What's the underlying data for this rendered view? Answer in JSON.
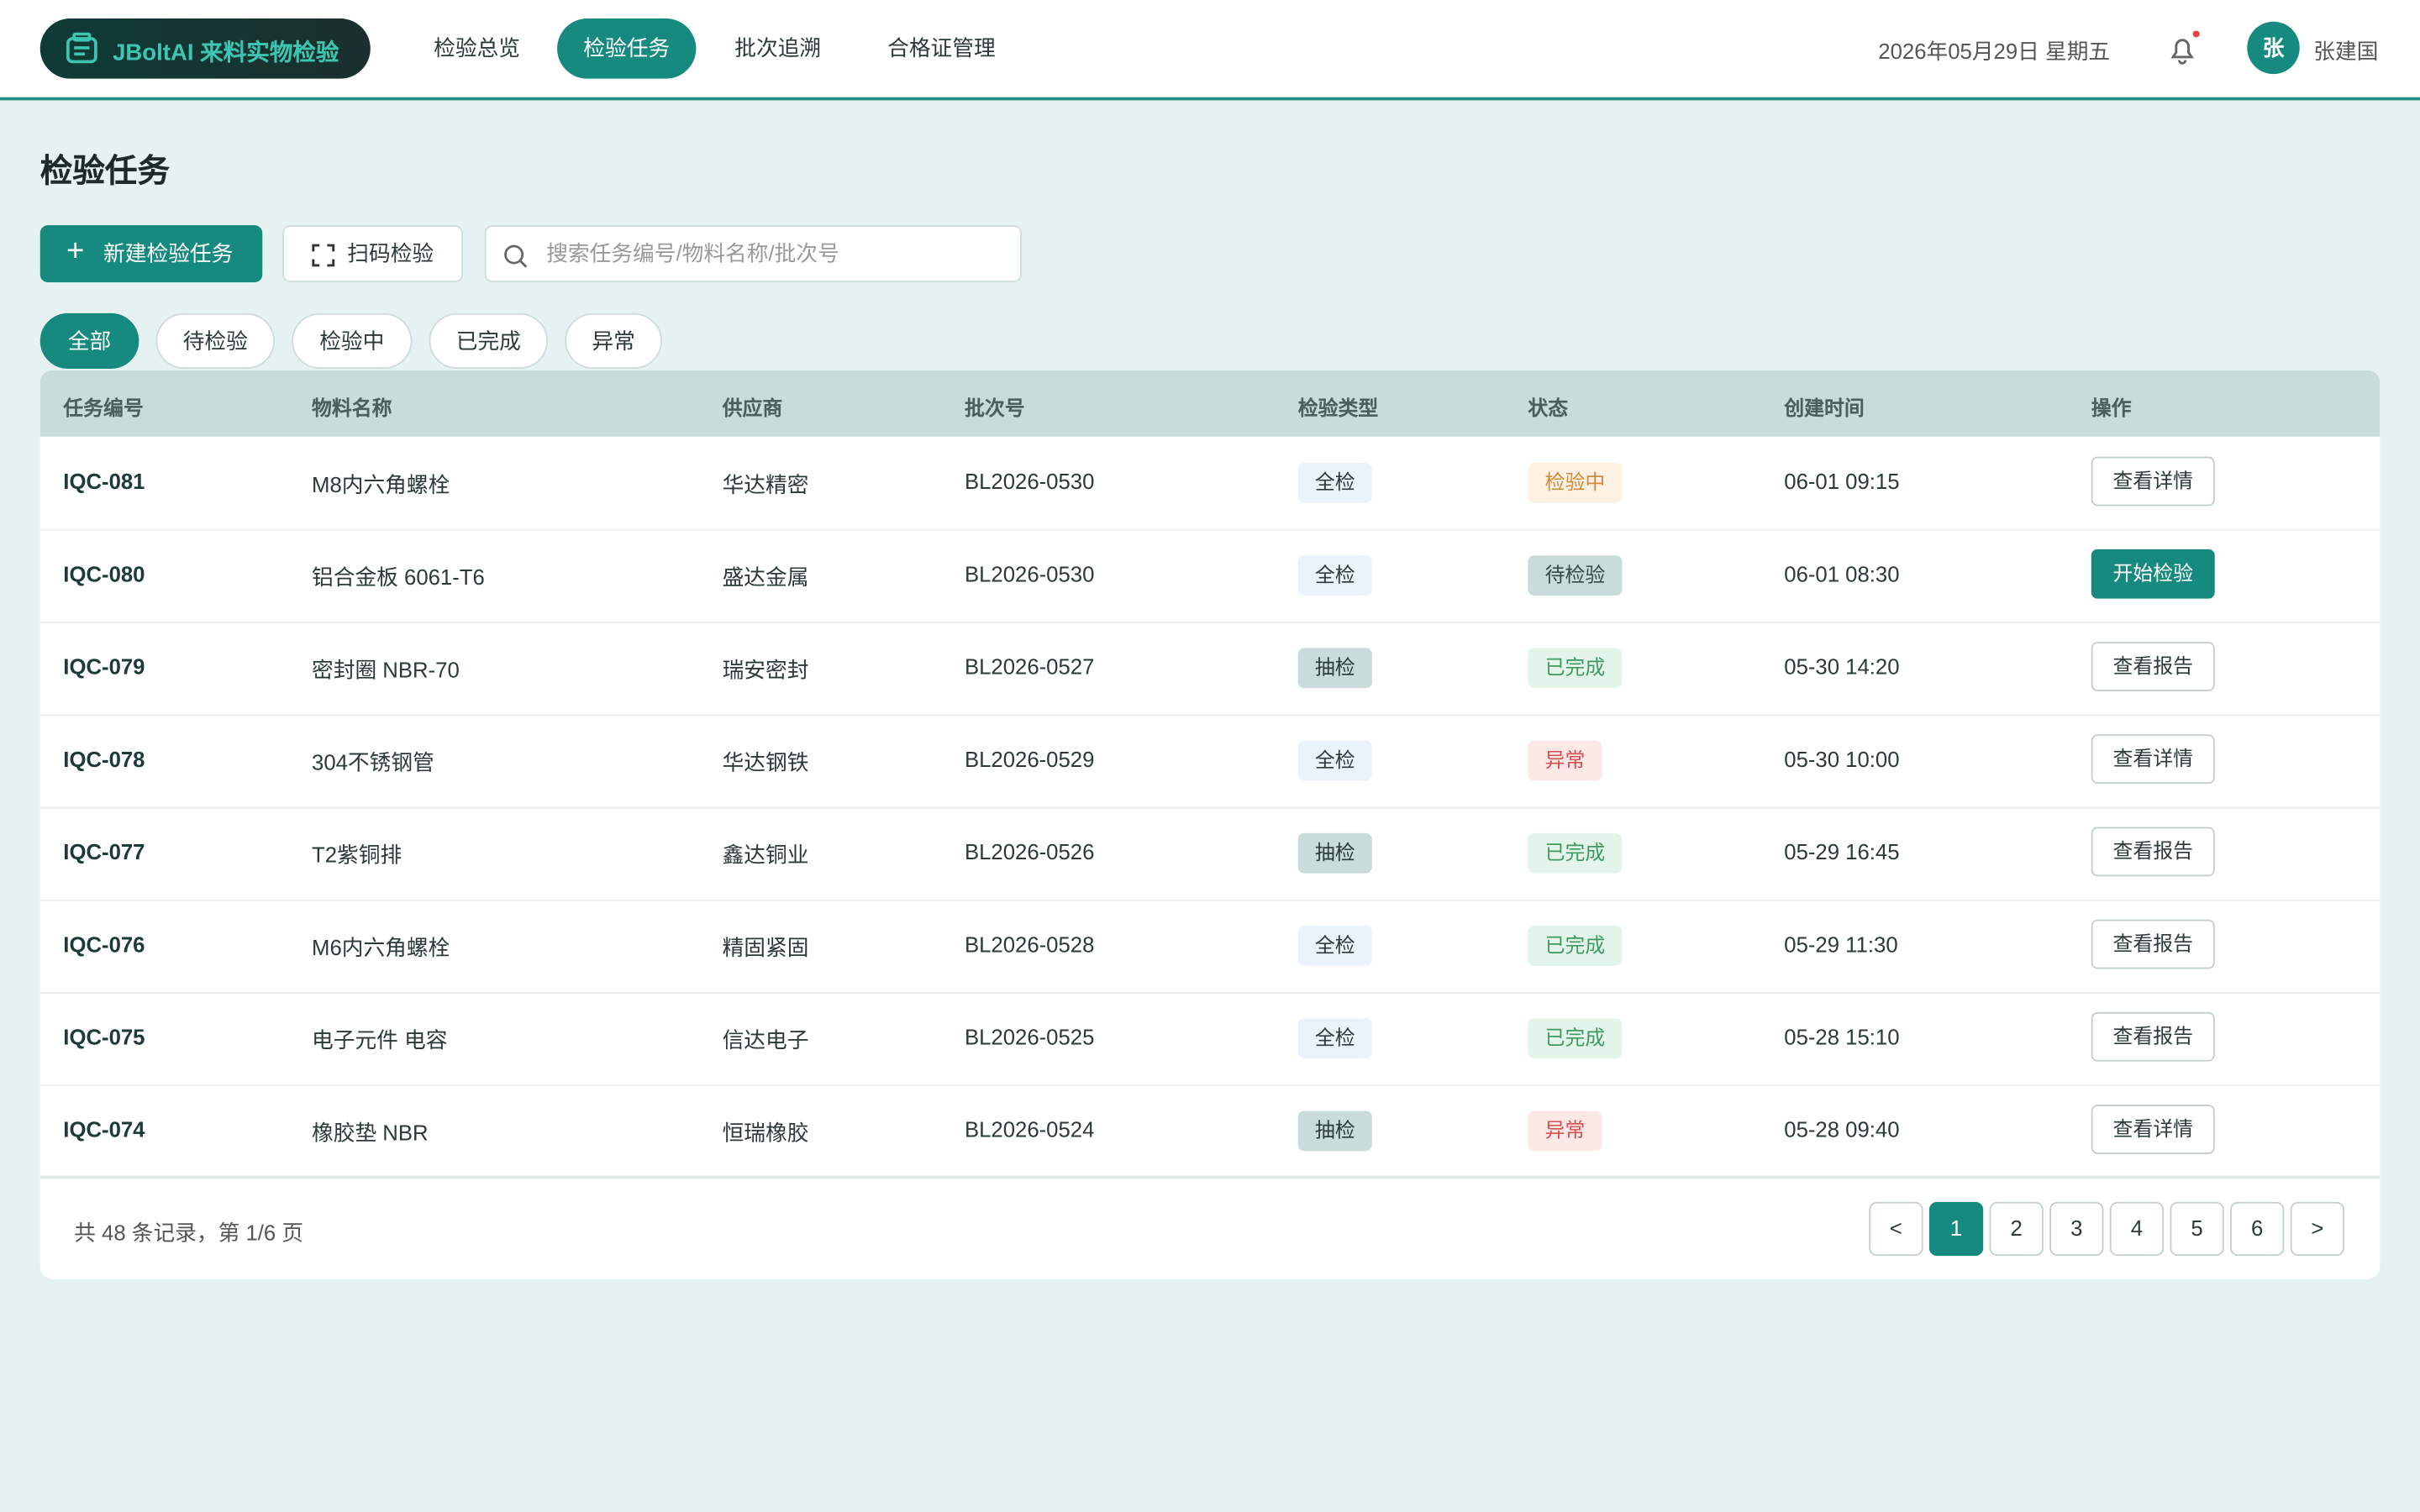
{
  "header": {
    "brand": "JBoltAI 来料实物检验",
    "nav": [
      "检验总览",
      "检验任务",
      "批次追溯",
      "合格证管理"
    ],
    "active_nav": 1,
    "date": "2026年05月29日 星期五",
    "avatar": "张",
    "user": "张建国"
  },
  "page": {
    "title": "检验任务",
    "new_button": "新建检验任务",
    "scan_button": "扫码检验",
    "search_placeholder": "搜索任务编号/物料名称/批次号",
    "filters": [
      "全部",
      "待检验",
      "检验中",
      "已完成",
      "异常"
    ],
    "active_filter": 0
  },
  "table": {
    "columns": [
      "任务编号",
      "物料名称",
      "供应商",
      "批次号",
      "检验类型",
      "状态",
      "创建时间",
      "操作"
    ],
    "rows": [
      {
        "id": "IQC-081",
        "material": "M8内六角螺栓",
        "supplier": "华达精密",
        "batch": "BL2026-0530",
        "type": "全检",
        "type_bg": "#eaf3fb",
        "status": "检验中",
        "status_bg": "#fdf1e3",
        "status_fg": "#d08a3c",
        "time": "06-01 09:15",
        "action": "查看详情",
        "action_primary": false
      },
      {
        "id": "IQC-080",
        "material": "铝合金板 6061-T6",
        "supplier": "盛达金属",
        "batch": "BL2026-0530",
        "type": "全检",
        "type_bg": "#eaf3fb",
        "status": "待检验",
        "status_bg": "#c9dcd9",
        "status_fg": "#2f4a47",
        "time": "06-01 08:30",
        "action": "开始检验",
        "action_primary": true
      },
      {
        "id": "IQC-079",
        "material": "密封圈 NBR-70",
        "supplier": "瑞安密封",
        "batch": "BL2026-0527",
        "type": "抽检",
        "type_bg": "#c9dcd9",
        "status": "已完成",
        "status_bg": "#e3f4ea",
        "status_fg": "#3f9a62",
        "time": "05-30 14:20",
        "action": "查看报告",
        "action_primary": false
      },
      {
        "id": "IQC-078",
        "material": "304不锈钢管",
        "supplier": "华达钢铁",
        "batch": "BL2026-0529",
        "type": "全检",
        "type_bg": "#eaf3fb",
        "status": "异常",
        "status_bg": "#fde8e8",
        "status_fg": "#d2504f",
        "time": "05-30 10:00",
        "action": "查看详情",
        "action_primary": false
      },
      {
        "id": "IQC-077",
        "material": "T2紫铜排",
        "supplier": "鑫达铜业",
        "batch": "BL2026-0526",
        "type": "抽检",
        "type_bg": "#c9dcd9",
        "status": "已完成",
        "status_bg": "#e3f4ea",
        "status_fg": "#3f9a62",
        "time": "05-29 16:45",
        "action": "查看报告",
        "action_primary": false
      },
      {
        "id": "IQC-076",
        "material": "M6内六角螺栓",
        "supplier": "精固紧固",
        "batch": "BL2026-0528",
        "type": "全检",
        "type_bg": "#eaf3fb",
        "status": "已完成",
        "status_bg": "#e3f4ea",
        "status_fg": "#3f9a62",
        "time": "05-29 11:30",
        "action": "查看报告",
        "action_primary": false
      },
      {
        "id": "IQC-075",
        "material": "电子元件 电容",
        "supplier": "信达电子",
        "batch": "BL2026-0525",
        "type": "全检",
        "type_bg": "#eaf3fb",
        "status": "已完成",
        "status_bg": "#e3f4ea",
        "status_fg": "#3f9a62",
        "time": "05-28 15:10",
        "action": "查看报告",
        "action_primary": false
      },
      {
        "id": "IQC-074",
        "material": "橡胶垫 NBR",
        "supplier": "恒瑞橡胶",
        "batch": "BL2026-0524",
        "type": "抽检",
        "type_bg": "#c9dcd9",
        "status": "异常",
        "status_bg": "#fde8e8",
        "status_fg": "#d2504f",
        "time": "05-28 09:40",
        "action": "查看详情",
        "action_primary": false
      }
    ]
  },
  "footer": {
    "summary": "共 48 条记录，第 1/6 页",
    "prev": "<",
    "pages": [
      1,
      2,
      3,
      4,
      5,
      6
    ],
    "active_page": 1,
    "next": ">"
  }
}
